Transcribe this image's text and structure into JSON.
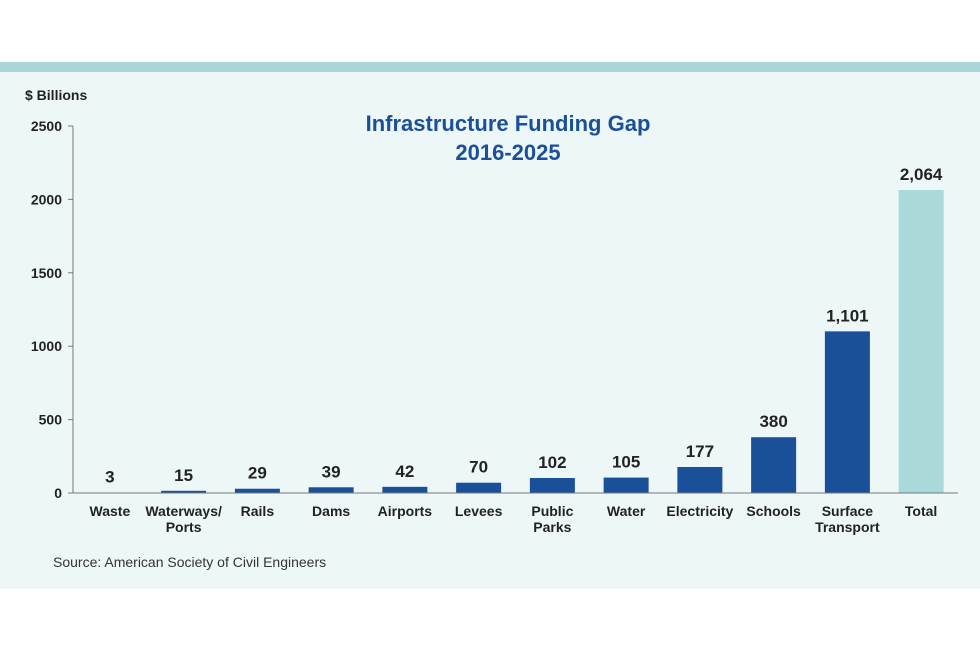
{
  "chart_data": {
    "type": "bar",
    "title": [
      "Infrastructure Funding Gap",
      "2016-2025"
    ],
    "ylabel": "$ Billions",
    "ylim": [
      0,
      2500
    ],
    "yticks": [
      "0",
      "500",
      "1000",
      "1500",
      "2000",
      "2500"
    ],
    "categories": [
      [
        "Waste"
      ],
      [
        "Waterways/",
        "Ports"
      ],
      [
        "Rails"
      ],
      [
        "Dams"
      ],
      [
        "Airports"
      ],
      [
        "Levees"
      ],
      [
        "Public",
        "Parks"
      ],
      [
        "Water"
      ],
      [
        "Electricity"
      ],
      [
        "Schools"
      ],
      [
        "Surface",
        "Transport"
      ],
      [
        "Total"
      ]
    ],
    "values": [
      3,
      15,
      29,
      39,
      42,
      70,
      102,
      105,
      177,
      380,
      1101,
      2064
    ],
    "value_labels": [
      "3",
      "15",
      "29",
      "39",
      "42",
      "70",
      "102",
      "105",
      "177",
      "380",
      "1,101",
      "2,064"
    ],
    "bar_color": "#1a4f9a",
    "total_color": "#a9d9d9",
    "source": "Source: American Society of Civil Engineers"
  }
}
